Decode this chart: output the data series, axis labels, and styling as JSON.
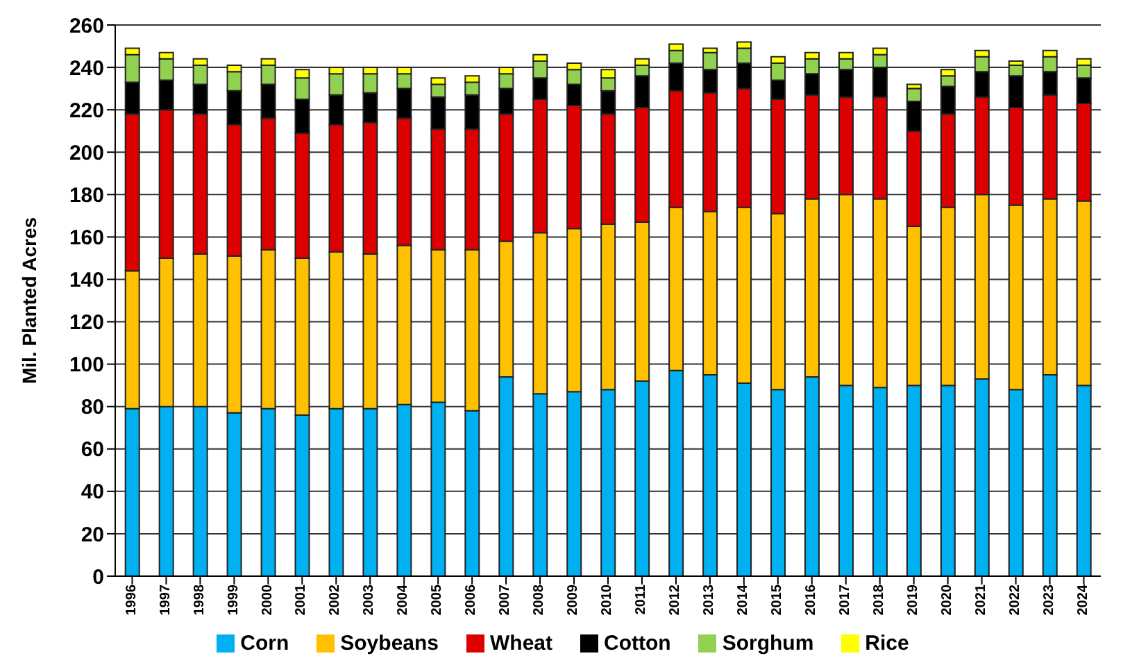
{
  "chart_data": {
    "type": "bar",
    "stacked": true,
    "ylabel": "Mil. Planted Acres",
    "categories": [
      "1996",
      "1997",
      "1998",
      "1999",
      "2000",
      "2001",
      "2002",
      "2003",
      "2004",
      "2005",
      "2006",
      "2007",
      "2008",
      "2009",
      "2010",
      "2011",
      "2012",
      "2013",
      "2014",
      "2015",
      "2016",
      "2017",
      "2018",
      "2019",
      "2020",
      "2021",
      "2022",
      "2023",
      "2024"
    ],
    "series": [
      {
        "name": "Corn",
        "color": "#00b0f0",
        "values": [
          79,
          80,
          80,
          77,
          79,
          76,
          79,
          79,
          81,
          82,
          78,
          94,
          86,
          87,
          88,
          92,
          97,
          95,
          91,
          88,
          94,
          90,
          89,
          90,
          90,
          93,
          88,
          95,
          90
        ]
      },
      {
        "name": "Soybeans",
        "color": "#ffc000",
        "values": [
          65,
          70,
          72,
          74,
          75,
          74,
          74,
          73,
          75,
          72,
          76,
          64,
          76,
          77,
          78,
          75,
          77,
          77,
          83,
          83,
          84,
          90,
          89,
          75,
          84,
          87,
          87,
          83,
          87
        ]
      },
      {
        "name": "Wheat",
        "color": "#dd0000",
        "values": [
          74,
          70,
          66,
          62,
          62,
          59,
          60,
          62,
          60,
          57,
          57,
          60,
          63,
          58,
          52,
          54,
          55,
          56,
          56,
          54,
          49,
          46,
          48,
          45,
          44,
          46,
          46,
          49,
          46
        ]
      },
      {
        "name": "Cotton",
        "color": "#000000",
        "values": [
          15,
          14,
          14,
          16,
          16,
          16,
          14,
          14,
          14,
          15,
          16,
          12,
          10,
          10,
          11,
          15,
          13,
          11,
          12,
          9,
          10,
          13,
          14,
          14,
          13,
          12,
          15,
          11,
          12
        ]
      },
      {
        "name": "Sorghum",
        "color": "#92d050",
        "values": [
          13,
          10,
          9,
          9,
          9,
          10,
          10,
          9,
          7,
          6,
          6,
          7,
          8,
          7,
          6,
          5,
          6,
          8,
          7,
          8,
          7,
          5,
          6,
          6,
          5,
          7,
          5,
          7,
          6
        ]
      },
      {
        "name": "Rice",
        "color": "#ffff00",
        "values": [
          3,
          3,
          3,
          3,
          3,
          4,
          3,
          3,
          3,
          3,
          3,
          3,
          3,
          3,
          4,
          3,
          3,
          2,
          3,
          3,
          3,
          3,
          3,
          2,
          3,
          3,
          2,
          3,
          3
        ]
      }
    ],
    "ylim": [
      0,
      260
    ],
    "yticks": [
      0,
      20,
      40,
      60,
      80,
      100,
      120,
      140,
      160,
      180,
      200,
      220,
      240,
      260
    ],
    "grid": "y",
    "legend": "bottom"
  }
}
